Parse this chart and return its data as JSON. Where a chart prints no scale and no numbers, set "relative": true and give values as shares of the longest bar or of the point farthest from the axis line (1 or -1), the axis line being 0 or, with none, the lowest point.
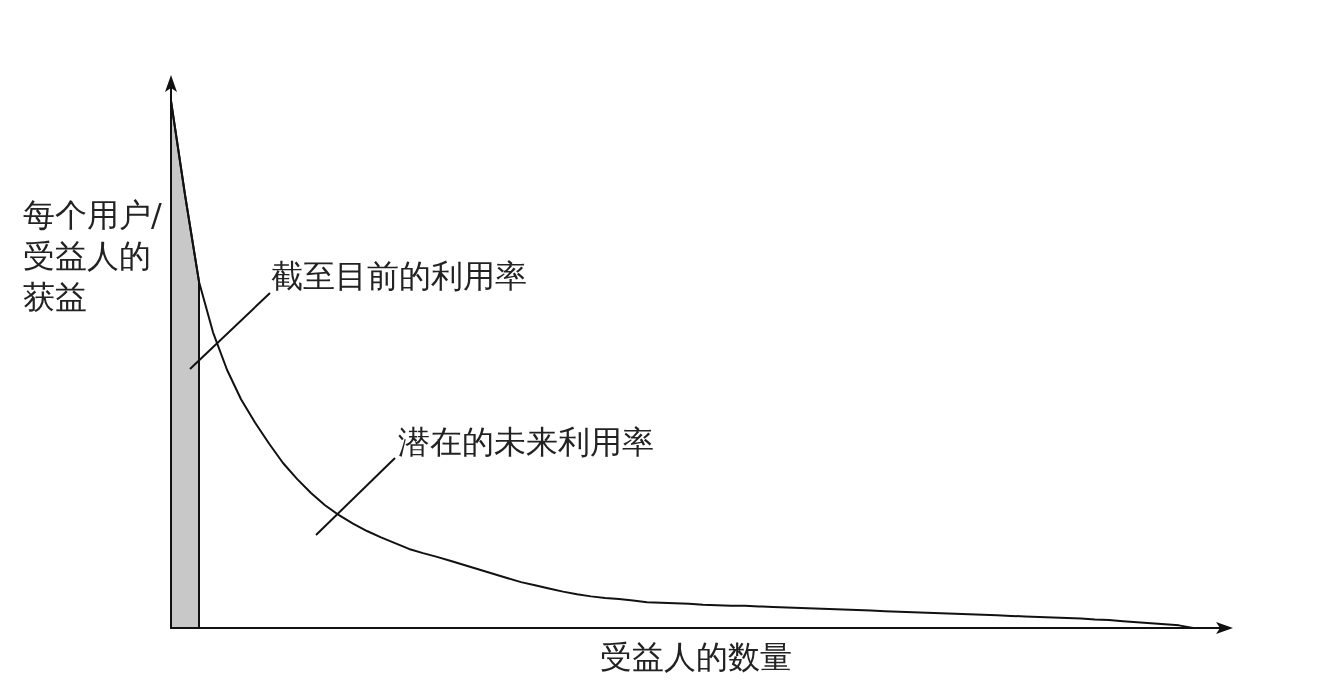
{
  "chart_data": {
    "type": "line",
    "relative": true,
    "xlabel": "受益人的数量",
    "ylabel": "每个用户/受益人的获益",
    "annotations": [
      "截至目前的利用率",
      "潜在的未来利用率"
    ],
    "marker": "none",
    "categories": [
      null,
      null,
      null,
      null,
      null,
      null,
      null,
      null,
      null,
      null,
      null,
      null,
      null,
      null,
      null,
      null,
      null,
      null,
      null,
      null,
      null,
      null,
      null,
      null,
      null,
      null,
      null,
      null,
      null,
      null,
      null,
      null,
      null,
      null,
      null,
      null,
      null,
      null,
      null,
      null,
      null,
      null,
      null,
      null,
      null,
      null,
      null,
      null,
      null,
      null,
      null,
      null,
      null,
      null,
      null,
      null,
      null,
      null,
      null,
      null,
      null,
      null,
      null,
      null,
      null,
      null,
      null,
      null,
      null,
      null,
      null,
      null,
      null,
      null,
      null,
      null
    ],
    "series": [
      {
        "color": "#111111",
        "values": [
          1,
          0.822,
          0.657,
          0.561,
          0.49,
          0.434,
          0.39,
          0.35,
          0.313,
          0.283,
          0.256,
          0.233,
          0.214,
          0.198,
          0.184,
          0.172,
          0.161,
          0.15,
          0.142,
          0.135,
          0.127,
          0.119,
          0.111,
          0.103,
          0.095,
          0.087,
          0.081,
          0.075,
          0.069,
          0.064,
          0.06,
          0.057,
          0.055,
          0.052,
          0.049,
          0.048,
          0.047,
          0.046,
          0.044,
          0.043,
          0.042,
          0.042,
          0.041,
          0.04,
          0.039,
          0.038,
          0.037,
          0.036,
          0.035,
          0.034,
          0.033,
          0.032,
          0.031,
          0.03,
          0.029,
          0.028,
          0.027,
          0.026,
          0.025,
          0.024,
          0.023,
          0.022,
          0.021,
          0.02,
          0.019,
          0.018,
          0.016,
          0.015,
          0.013,
          0.011,
          0.009,
          0.007,
          0.005,
          0,
          null,
          null
        ]
      },
      {
        "type": "area",
        "color": "#c8c8c8",
        "values": [
          1,
          0.822,
          0.657,
          null,
          null,
          null,
          null,
          null,
          null,
          null,
          null,
          null,
          null,
          null,
          null,
          null,
          null,
          null,
          null,
          null,
          null,
          null,
          null,
          null,
          null,
          null,
          null,
          null,
          null,
          null,
          null,
          null,
          null,
          null,
          null,
          null,
          null,
          null,
          null,
          null,
          null,
          null,
          null,
          null,
          null,
          null,
          null,
          null,
          null,
          null,
          null,
          null,
          null,
          null,
          null,
          null,
          null,
          null,
          null,
          null,
          null,
          null,
          null,
          null,
          null,
          null,
          null,
          null,
          null,
          null,
          null,
          null,
          null,
          null,
          null,
          null
        ]
      }
    ]
  }
}
